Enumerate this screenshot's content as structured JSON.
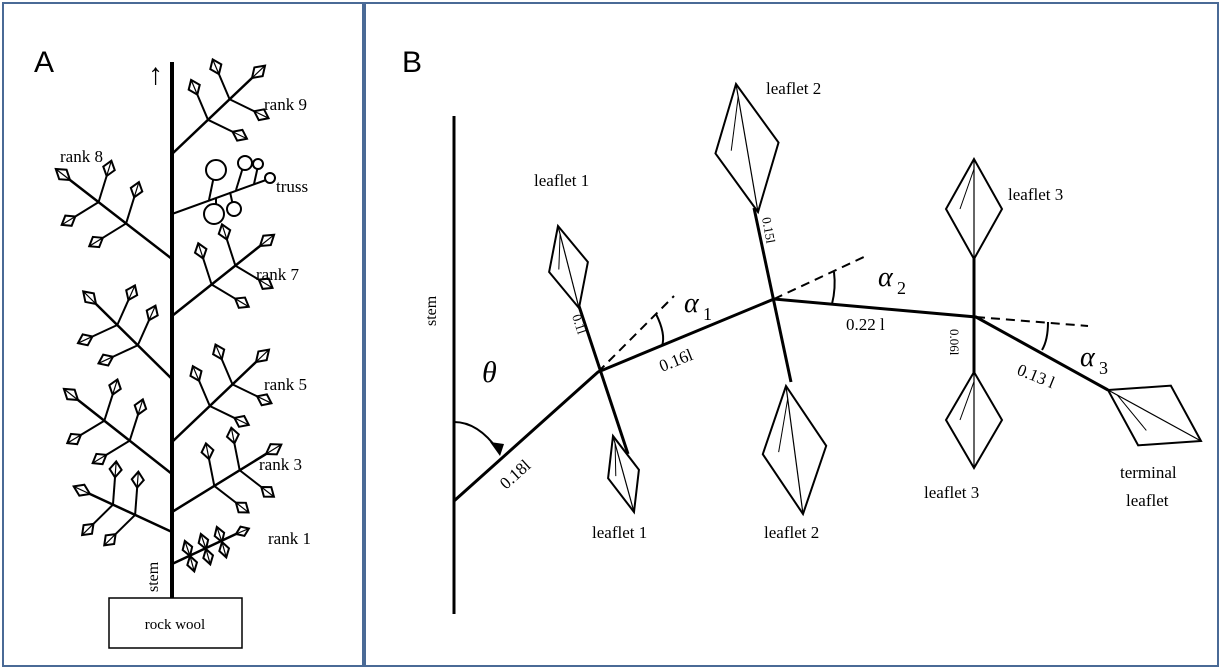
{
  "panel_a": {
    "letter": "A",
    "arrow": "↑",
    "labels": {
      "rank9": "rank 9",
      "rank8": "rank 8",
      "truss": "truss",
      "rank7": "rank 7",
      "rank5": "rank 5",
      "rank3": "rank 3",
      "rank1": "rank 1",
      "stem": "stem",
      "base": "rock wool"
    }
  },
  "panel_b": {
    "letter": "B",
    "labels": {
      "stem": "stem",
      "theta": "θ",
      "leaflet1_top": "leaflet 1",
      "leaflet1_bottom": "leaflet 1",
      "leaflet2_top": "leaflet 2",
      "leaflet2_bottom": "leaflet 2",
      "leaflet3_top": "leaflet 3",
      "leaflet3_bottom": "leaflet 3",
      "terminal_line1": "terminal",
      "terminal_line2": "leaflet",
      "alpha1": "α",
      "alpha1_sub": "1",
      "alpha2": "α",
      "alpha2_sub": "2",
      "alpha3": "α",
      "alpha3_sub": "3",
      "seg1": "0.18l",
      "seg2": "0.16l",
      "seg3": "0.22 l",
      "seg4": "0.13 l",
      "petiole1": "0.1l",
      "petiole2": "0.15l",
      "petiole3": "0.06l"
    }
  }
}
